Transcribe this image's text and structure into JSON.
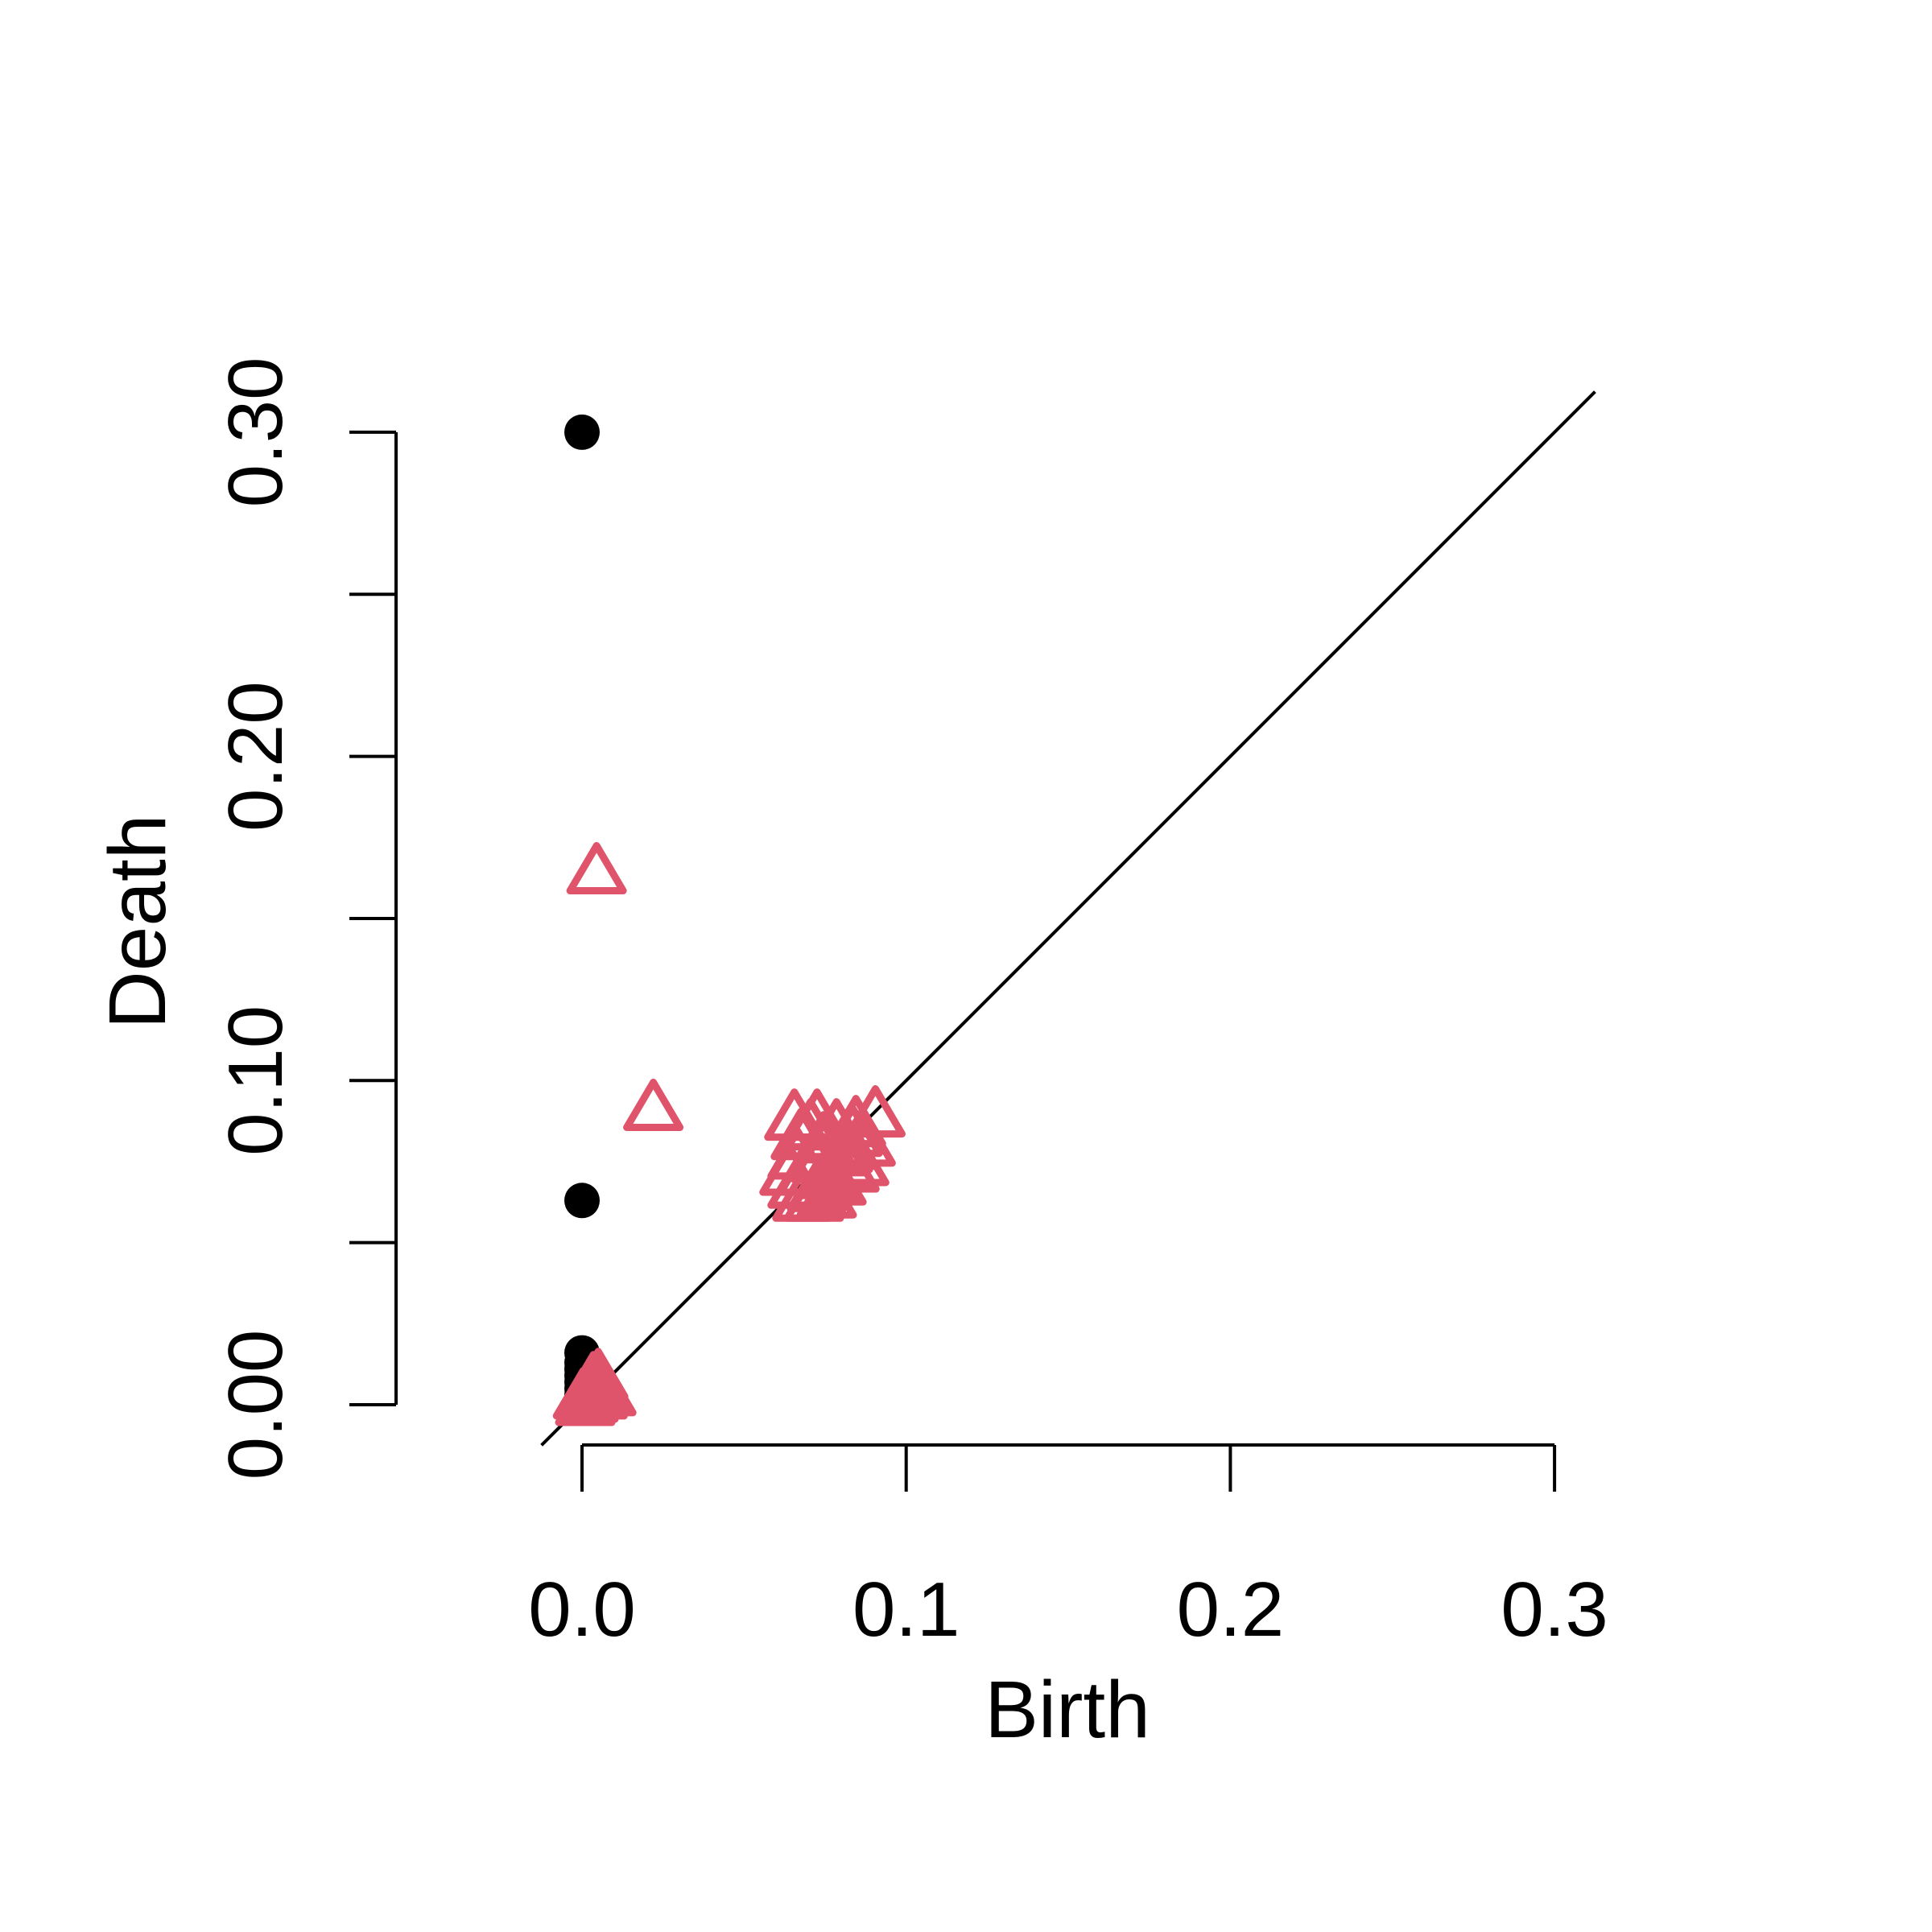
{
  "chart_data": {
    "type": "scatter",
    "title": "",
    "xlabel": "Birth",
    "ylabel": "Death",
    "xlim": [
      0,
      0.3
    ],
    "ylim": [
      0,
      0.3
    ],
    "x_ticks": [
      {
        "value": 0.0,
        "label": "0.0"
      },
      {
        "value": 0.1,
        "label": "0.1"
      },
      {
        "value": 0.2,
        "label": "0.2"
      },
      {
        "value": 0.3,
        "label": "0.3"
      }
    ],
    "y_ticks": [
      {
        "value": 0.0,
        "label": "0.00"
      },
      {
        "value": 0.05,
        "label": ""
      },
      {
        "value": 0.1,
        "label": "0.10"
      },
      {
        "value": 0.15,
        "label": ""
      },
      {
        "value": 0.2,
        "label": "0.20"
      },
      {
        "value": 0.25,
        "label": ""
      },
      {
        "value": 0.3,
        "label": "0.30"
      }
    ],
    "diagonal": {
      "from": -0.0125,
      "to": 0.3125
    },
    "grid": false,
    "legend": "none",
    "series": [
      {
        "marker": "filled-circle",
        "color": "#000000",
        "points": [
          [
            0.0,
            0.3
          ],
          [
            0.0,
            0.063
          ],
          [
            0.0,
            0.016
          ],
          [
            0.0,
            0.013
          ],
          [
            0.0,
            0.011
          ],
          [
            0.0,
            0.009
          ],
          [
            0.0,
            0.007
          ],
          [
            0.0,
            0.005
          ],
          [
            0.0,
            0.003
          ],
          [
            0.0,
            0.001
          ]
        ]
      },
      {
        "marker": "open-triangle",
        "color": "#df536b",
        "points": [
          [
            0.0045,
            0.165
          ],
          [
            0.022,
            0.092
          ],
          [
            0.0655,
            0.089
          ],
          [
            0.0725,
            0.089
          ],
          [
            0.0785,
            0.086
          ],
          [
            0.0845,
            0.087
          ],
          [
            0.0905,
            0.09
          ],
          [
            0.0675,
            0.083
          ],
          [
            0.0745,
            0.082
          ],
          [
            0.0815,
            0.08
          ],
          [
            0.0875,
            0.081
          ],
          [
            0.0665,
            0.077
          ],
          [
            0.0735,
            0.076
          ],
          [
            0.0795,
            0.078
          ],
          [
            0.0855,
            0.075
          ],
          [
            0.0695,
            0.072
          ],
          [
            0.0765,
            0.071
          ],
          [
            0.0825,
            0.073
          ],
          [
            0.0665,
            0.068
          ],
          [
            0.0725,
            0.067
          ],
          [
            0.0785,
            0.069
          ],
          [
            0.0715,
            0.064
          ],
          [
            0.0755,
            0.065
          ],
          [
            0.068,
            0.064
          ],
          [
            0.0805,
            0.079
          ],
          [
            0.0835,
            0.084
          ],
          [
            0.0705,
            0.086
          ],
          [
            0.064,
            0.072
          ],
          [
            0.0003,
            0.003
          ],
          [
            0.0015,
            0.004
          ],
          [
            0.0028,
            0.005
          ],
          [
            0.004,
            0.006
          ],
          [
            0.0055,
            0.007
          ],
          [
            0.0065,
            0.005
          ],
          [
            0.002,
            0.002
          ],
          [
            0.0048,
            0.003
          ],
          [
            0.0075,
            0.004
          ],
          [
            0.0035,
            0.008
          ],
          [
            0.005,
            0.009
          ],
          [
            0.001,
            0.001
          ]
        ]
      }
    ]
  }
}
